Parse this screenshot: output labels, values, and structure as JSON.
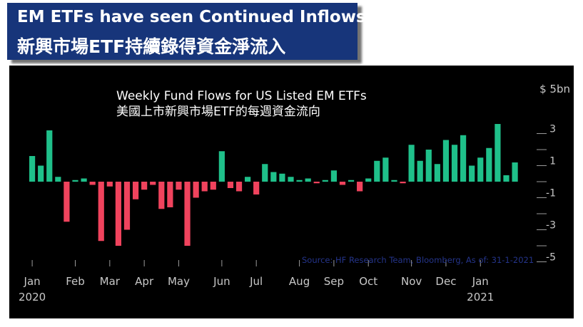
{
  "header": {
    "title_en": "EM ETFs have seen Continued Inflows",
    "title_zh": "新興市場ETF持續錄得資金淨流入"
  },
  "colors": {
    "banner": "#17357a",
    "background": "#000000",
    "positive": "#1fc08a",
    "negative": "#f0435d",
    "axis_text": "#c8c8c8",
    "source_text": "#24348a"
  },
  "source": "Source: HF Research Team, Bloomberg, As of: 31-1-2021",
  "chart_data": {
    "type": "bar",
    "title": "Weekly Fund Flows for US Listed EM ETFs",
    "subtitle": "美國上市新興市場ETF的每週資金流向",
    "ylabel": "$ 5bn",
    "ylim": [
      -5.5,
      5
    ],
    "y_ticks": [
      -5,
      -3,
      -1,
      1,
      3
    ],
    "y_tick_labels": [
      "-5",
      "-3",
      "-1",
      "1",
      "3"
    ],
    "y_top_label": "$ 5bn",
    "x_ticks": [
      {
        "label": "Jan",
        "sub": "2020",
        "week": 0
      },
      {
        "label": "Feb",
        "sub": "",
        "week": 5
      },
      {
        "label": "Mar",
        "sub": "",
        "week": 9
      },
      {
        "label": "Apr",
        "sub": "",
        "week": 13
      },
      {
        "label": "May",
        "sub": "",
        "week": 17
      },
      {
        "label": "Jun",
        "sub": "",
        "week": 22
      },
      {
        "label": "Jul",
        "sub": "",
        "week": 26
      },
      {
        "label": "Aug",
        "sub": "",
        "week": 31
      },
      {
        "label": "Sep",
        "sub": "",
        "week": 35
      },
      {
        "label": "Oct",
        "sub": "",
        "week": 39
      },
      {
        "label": "Nov",
        "sub": "",
        "week": 44
      },
      {
        "label": "Dec",
        "sub": "",
        "week": 48
      },
      {
        "label": "Jan",
        "sub": "2021",
        "week": 52
      }
    ],
    "values": [
      1.6,
      1.0,
      3.2,
      0.3,
      -2.5,
      0.1,
      0.2,
      -0.2,
      -3.7,
      -0.3,
      -4.0,
      -3.0,
      -1.1,
      -0.5,
      -0.2,
      -1.7,
      -1.6,
      -0.5,
      -4.0,
      -1.0,
      -0.6,
      -0.5,
      1.9,
      -0.4,
      -0.6,
      0.3,
      -0.8,
      1.1,
      0.6,
      0.5,
      0.3,
      0.1,
      0.2,
      -0.1,
      0.1,
      0.7,
      -0.2,
      0.1,
      -0.6,
      0.2,
      1.3,
      1.5,
      0.1,
      -0.1,
      2.3,
      1.3,
      2.0,
      1.1,
      2.6,
      2.3,
      2.9,
      1.0,
      1.5,
      2.1,
      3.6,
      0.4,
      1.2
    ]
  }
}
